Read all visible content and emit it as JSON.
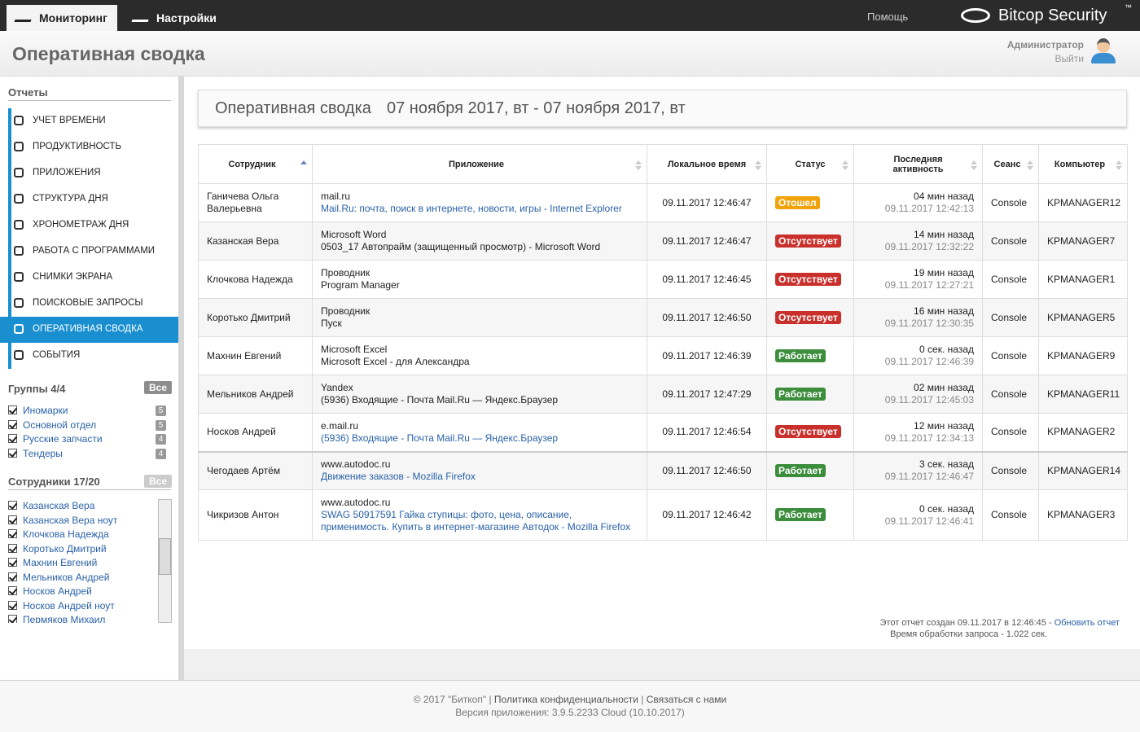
{
  "nav": {
    "tabs": [
      "Мониторинг",
      "Настройки"
    ],
    "help": "Помощь",
    "brand": "Bitcop Security",
    "brand_mark": "™"
  },
  "header": {
    "title": "Оперативная сводка",
    "user": "Администратор",
    "logout": "Выйти"
  },
  "sidebar": {
    "reports_title": "Отчеты",
    "reports": [
      {
        "label": "УЧЕТ ВРЕМЕНИ"
      },
      {
        "label": "ПРОДУКТИВНОСТЬ"
      },
      {
        "label": "ПРИЛОЖЕНИЯ"
      },
      {
        "label": "СТРУКТУРА ДНЯ"
      },
      {
        "label": "ХРОНОМЕТРАЖ ДНЯ"
      },
      {
        "label": "РАБОТА С ПРОГРАММАМИ"
      },
      {
        "label": "СНИМКИ ЭКРАНА"
      },
      {
        "label": "ПОИСКОВЫЕ ЗАПРОСЫ"
      },
      {
        "label": "ОПЕРАТИВНАЯ СВОДКА",
        "active": true
      },
      {
        "label": "СОБЫТИЯ"
      }
    ],
    "groups": {
      "title": "Группы 4/4",
      "all": "Все",
      "items": [
        {
          "name": "Иномарки",
          "count": 5
        },
        {
          "name": "Основной отдел",
          "count": 5
        },
        {
          "name": "Русские запчасти",
          "count": 4
        },
        {
          "name": "Тендеры",
          "count": 4
        }
      ]
    },
    "employees": {
      "title": "Сотрудники 17/20",
      "all": "Все",
      "items": [
        "Казанская Вера",
        "Казанская Вера ноут",
        "Клочкова Надежда",
        "Коротько Дмитрий",
        "Махнин Евгений",
        "Мельников Андрей",
        "Носков Андрей",
        "Носков Андрей ноут",
        "Пермяков Михаил"
      ]
    }
  },
  "report": {
    "title": "Оперативная сводка",
    "period": "07 ноября 2017, вт - 07 ноября 2017, вт"
  },
  "table": {
    "columns": [
      "Сотрудник",
      "Приложение",
      "Локальное время",
      "Статус",
      "Последняя активность",
      "Сеанс",
      "Компьютер"
    ],
    "rows": [
      {
        "employee": "Ганичева Ольга Валерьевна",
        "app": "mail.ru",
        "window": "Mail.Ru: почта, поиск в интернете, новости, игры - Internet Explorer",
        "window_link": true,
        "local_time": "09.11.2017 12:46:47",
        "status": "Отошел",
        "status_color": "#f0a30a",
        "ago": "04 мин назад",
        "last_time": "09.11.2017 12:42:13",
        "session": "Console",
        "computer": "KPMANAGER12"
      },
      {
        "employee": "Казанская Вера",
        "app": "Microsoft Word",
        "window": "0503_17 Автопрайм (защищенный просмотр) - Microsoft Word",
        "window_link": false,
        "local_time": "09.11.2017 12:46:47",
        "status": "Отсутствует",
        "status_color": "#c9302c",
        "ago": "14 мин назад",
        "last_time": "09.11.2017 12:32:22",
        "session": "Console",
        "computer": "KPMANAGER7"
      },
      {
        "employee": "Клочкова Надежда",
        "app": "Проводник",
        "window": "Program Manager",
        "window_link": false,
        "local_time": "09.11.2017 12:46:45",
        "status": "Отсутствует",
        "status_color": "#c9302c",
        "ago": "19 мин назад",
        "last_time": "09.11.2017 12:27:21",
        "session": "Console",
        "computer": "KPMANAGER1"
      },
      {
        "employee": "Коротько Дмитрий",
        "app": "Проводник",
        "window": "Пуск",
        "window_link": false,
        "local_time": "09.11.2017 12:46:50",
        "status": "Отсутствует",
        "status_color": "#c9302c",
        "ago": "16 мин назад",
        "last_time": "09.11.2017 12:30:35",
        "session": "Console",
        "computer": "KPMANAGER5"
      },
      {
        "employee": "Махнин Евгений",
        "app": "Microsoft Excel",
        "window": "Microsoft Excel - для Александра",
        "window_link": false,
        "local_time": "09.11.2017 12:46:39",
        "status": "Работает",
        "status_color": "#3c8d3c",
        "ago": "0 сек. назад",
        "last_time": "09.11.2017 12:46:39",
        "session": "Console",
        "computer": "KPMANAGER9"
      },
      {
        "employee": "Мельников Андрей",
        "app": "Yandex",
        "window": "(5936) Входящие - Почта Mail.Ru — Яндекс.Браузер",
        "window_link": false,
        "local_time": "09.11.2017 12:47:29",
        "status": "Работает",
        "status_color": "#3c8d3c",
        "ago": "02 мин назад",
        "last_time": "09.11.2017 12:45:03",
        "session": "Console",
        "computer": "KPMANAGER11"
      },
      {
        "employee": "Носков Андрей",
        "app": "e.mail.ru",
        "window": "(5936) Входящие - Почта Mail.Ru — Яндекс.Браузер",
        "window_link": true,
        "local_time": "09.11.2017 12:46:54",
        "status": "Отсутствует",
        "status_color": "#c9302c",
        "ago": "12 мин назад",
        "last_time": "09.11.2017 12:34:13",
        "session": "Console",
        "computer": "KPMANAGER2"
      },
      {
        "employee": "Чегодаев Артём",
        "app": "www.autodoc.ru",
        "window": "Движение заказов - Mozilla Firefox",
        "window_link": true,
        "local_time": "09.11.2017 12:46:50",
        "status": "Работает",
        "status_color": "#3c8d3c",
        "ago": "3 сек. назад",
        "last_time": "09.11.2017 12:46:47",
        "session": "Console",
        "computer": "KPMANAGER14"
      },
      {
        "employee": "Чикризов Антон",
        "app": "www.autodoc.ru",
        "window": "SWAG 50917591 Гайка ступицы: фото, цена, описание, применимость. Купить в интернет-магазине Автодок - Mozilla Firefox",
        "window_link": true,
        "local_time": "09.11.2017 12:46:42",
        "status": "Работает",
        "status_color": "#3c8d3c",
        "ago": "0 сек. назад",
        "last_time": "09.11.2017 12:46:41",
        "session": "Console",
        "computer": "KPMANAGER3"
      }
    ]
  },
  "report_note": {
    "created": "Этот отчет создан 09.11.2017 в 12:46:45 -",
    "refresh": "Обновить отчет",
    "processing": "Время обработки запроса - 1.022 сек."
  },
  "footer": {
    "copyright": "© 2017 \"Биткоп\"",
    "separator": "|",
    "privacy": "Политика конфиденциальности",
    "contact": "Связаться с нами",
    "version_label": "Версия приложения:",
    "version": "3.9.5.2233 Cloud (10.10.2017)"
  }
}
